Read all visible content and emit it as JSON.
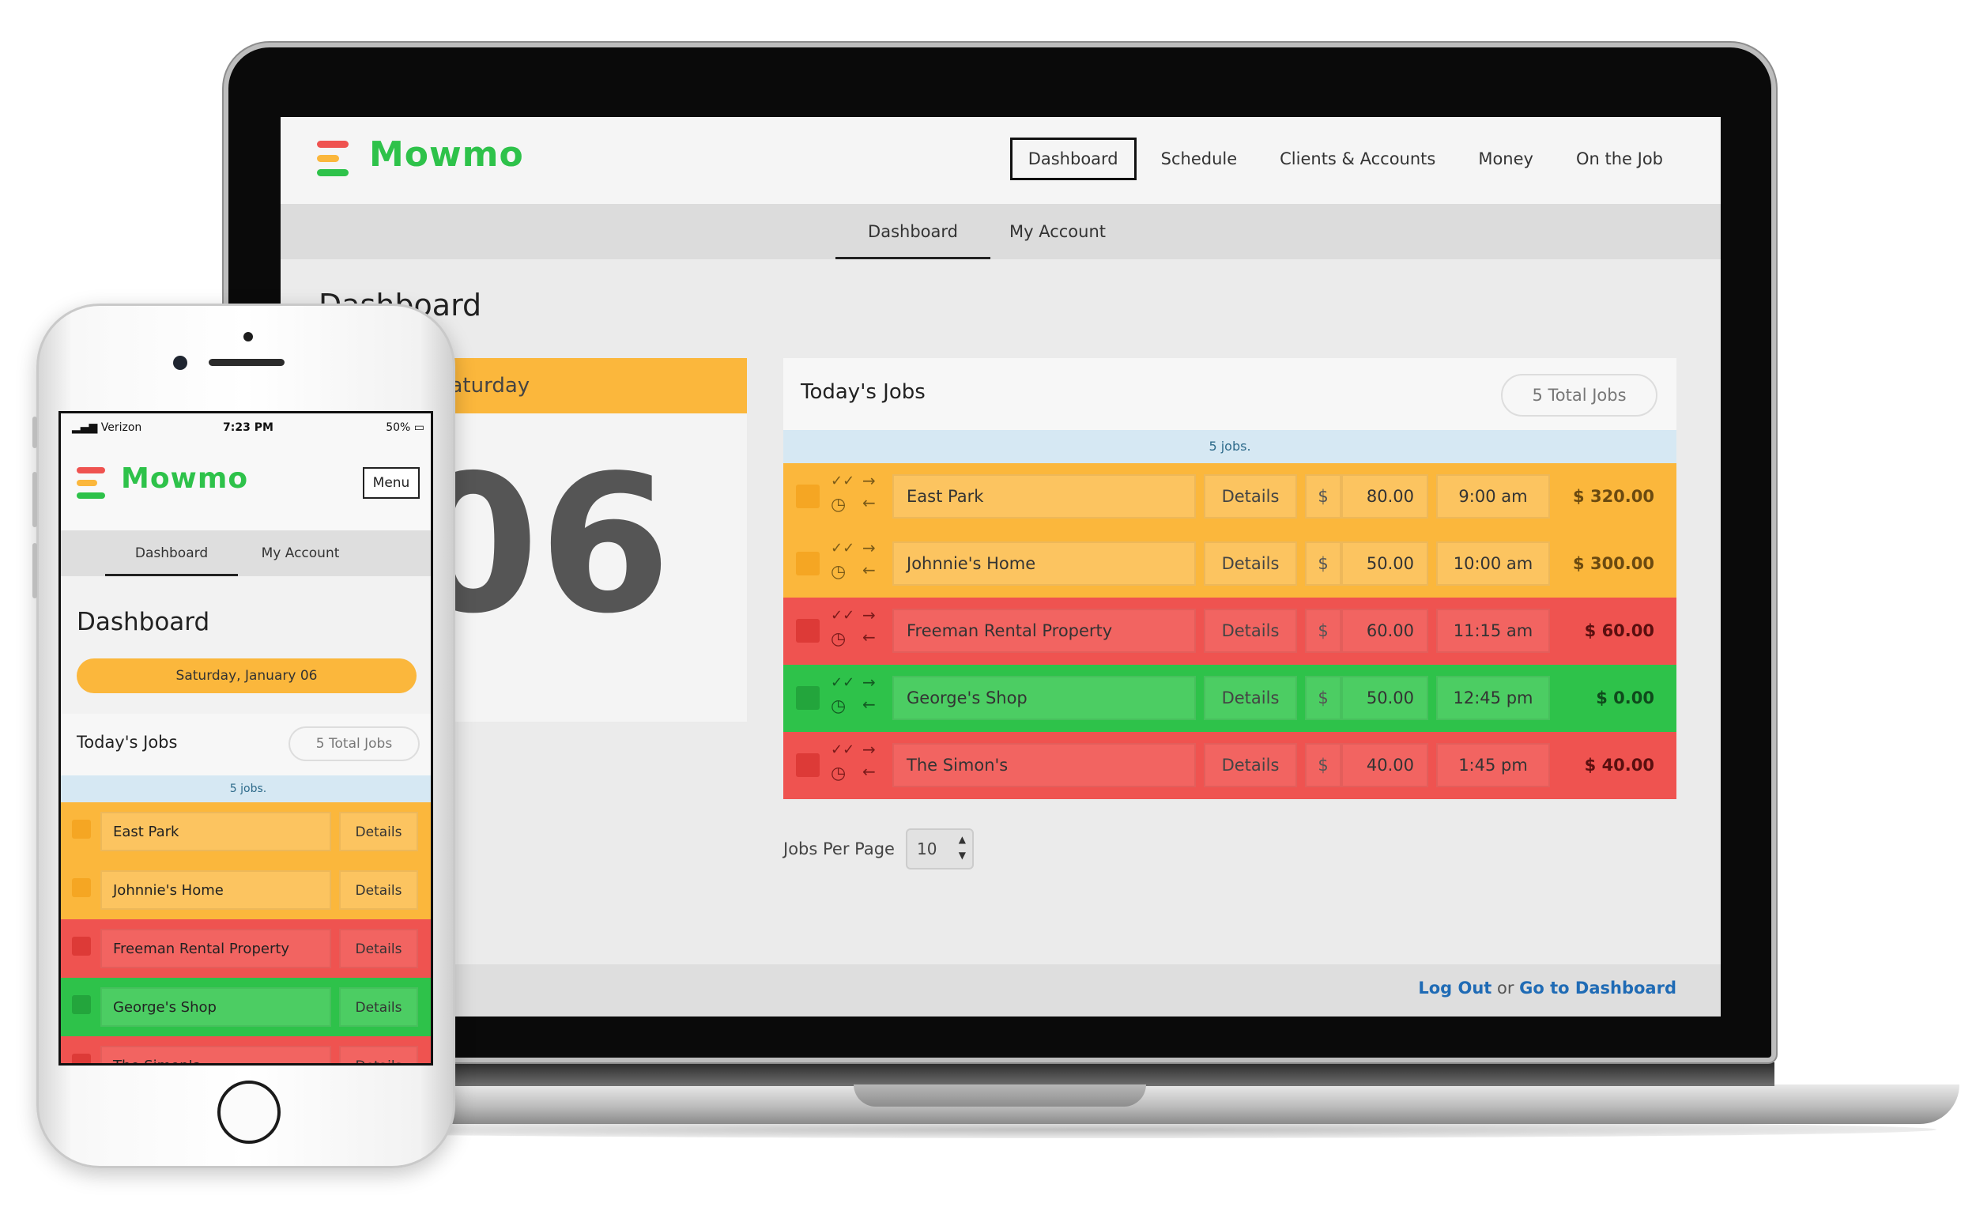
{
  "colors": {
    "brand_green": "#2ec24a",
    "orange": "#fbb73c",
    "red": "#ef5350",
    "green": "#2ec24a",
    "info_bar": "#d6e8f3",
    "link_blue": "#1f6bb5"
  },
  "desktop": {
    "brand": "Mowmo",
    "nav": [
      "Dashboard",
      "Schedule",
      "Clients & Accounts",
      "Money",
      "On the Job"
    ],
    "active_nav": "Dashboard",
    "subnav": [
      "Dashboard",
      "My Account"
    ],
    "page_title": "Dashboard",
    "date_card": {
      "weekday": "Saturday",
      "day": "06"
    },
    "jobs": {
      "title": "Today's Jobs",
      "total_label": "5 Total Jobs",
      "count_label": "5 jobs.",
      "currency_symbol": "$",
      "details_label": "Details",
      "rows": [
        {
          "status": "orange",
          "name": "East Park",
          "price": "80.00",
          "time": "9:00 am",
          "total": "$ 320.00"
        },
        {
          "status": "orange",
          "name": "Johnnie's Home",
          "price": "50.00",
          "time": "10:00 am",
          "total": "$ 300.00"
        },
        {
          "status": "red",
          "name": "Freeman Rental Property",
          "price": "60.00",
          "time": "11:15 am",
          "total": "$ 60.00"
        },
        {
          "status": "green",
          "name": "George's Shop",
          "price": "50.00",
          "time": "12:45 pm",
          "total": "$ 0.00"
        },
        {
          "status": "red",
          "name": "The Simon's",
          "price": "40.00",
          "time": "1:45 pm",
          "total": "$ 40.00"
        }
      ]
    },
    "per_page": {
      "label": "Jobs Per Page",
      "value": "10"
    },
    "footer": {
      "logout": "Log Out",
      "or": "or",
      "dashboard": "Go to Dashboard"
    },
    "icons": [
      "checkmark-double-icon",
      "clock-icon",
      "arrow-right-icon",
      "arrow-left-icon"
    ]
  },
  "mobile": {
    "status_bar": {
      "carrier": "Verizon",
      "time": "7:23 PM",
      "battery": "50%"
    },
    "brand": "Mowmo",
    "menu_label": "Menu",
    "subnav": [
      "Dashboard",
      "My Account"
    ],
    "page_title": "Dashboard",
    "date_pill": "Saturday, January 06",
    "jobs_title": "Today's Jobs",
    "total_label": "5 Total Jobs",
    "count_label": "5 jobs.",
    "details_label": "Details",
    "rows": [
      {
        "status": "orange",
        "name": "East Park"
      },
      {
        "status": "orange",
        "name": "Johnnie's Home"
      },
      {
        "status": "red",
        "name": "Freeman Rental Property"
      },
      {
        "status": "green",
        "name": "George's Shop"
      },
      {
        "status": "red",
        "name": "The Simon's"
      }
    ]
  }
}
